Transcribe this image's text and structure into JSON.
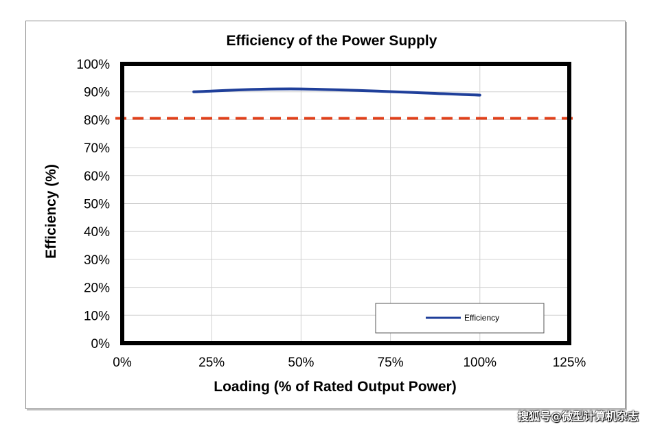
{
  "chart_data": {
    "type": "line",
    "title": "Efficiency of the Power Supply",
    "xlabel": "Loading (% of Rated Output Power)",
    "ylabel": "Efficiency (%)",
    "xlim": [
      0,
      125
    ],
    "ylim": [
      0,
      100
    ],
    "xticks": [
      0,
      25,
      50,
      75,
      100,
      125
    ],
    "xtick_labels": [
      "0%",
      "25%",
      "50%",
      "75%",
      "100%",
      "125%"
    ],
    "yticks": [
      0,
      10,
      20,
      30,
      40,
      50,
      60,
      70,
      80,
      90,
      100
    ],
    "ytick_labels": [
      "0%",
      "10%",
      "20%",
      "30%",
      "40%",
      "50%",
      "60%",
      "70%",
      "80%",
      "90%",
      "100%"
    ],
    "grid": true,
    "legend_position": "bottom-right",
    "series": [
      {
        "name": "Efficiency",
        "color": "#1f3f9a",
        "x": [
          20,
          50,
          100
        ],
        "y": [
          90.0,
          91.0,
          88.8
        ]
      }
    ],
    "reference_line": {
      "y": 80.5,
      "color": "#e0401a",
      "style": "dashed"
    }
  },
  "watermark": "搜狐号@微型计算机杂志"
}
